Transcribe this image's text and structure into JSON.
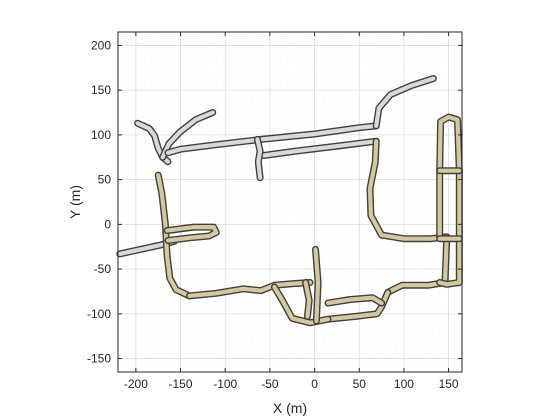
{
  "chart_data": {
    "type": "line",
    "xlabel": "X (m)",
    "ylabel": "Y (m)",
    "xlim": [
      -220,
      165
    ],
    "ylim": [
      -165,
      215
    ],
    "xticks": [
      -200,
      -150,
      -100,
      -50,
      0,
      50,
      100,
      150
    ],
    "yticks": [
      -150,
      -100,
      -50,
      0,
      50,
      100,
      150,
      200
    ],
    "xtick_labels": [
      "-200",
      "-150",
      "-100",
      "-50",
      "0",
      "50",
      "100",
      "150"
    ],
    "ytick_labels": [
      "-150",
      "-100",
      "-50",
      "0",
      "50",
      "100",
      "150",
      "200"
    ],
    "grid": true,
    "minor_grid": true,
    "colors": {
      "road_fill_gray": "#d9d9d9",
      "road_fill_tan": "#d4c99e",
      "road_edge": "#404040",
      "axis": "#262626",
      "major_grid": "#dcdcdc",
      "minor_grid": "#efefef"
    },
    "roads": [
      {
        "id": "upper-west-branch",
        "color": "gray",
        "points": [
          [
            -198,
            113
          ],
          [
            -185,
            107
          ],
          [
            -179,
            99
          ],
          [
            -175,
            85
          ],
          [
            -170,
            75
          ],
          [
            -164,
            70
          ]
        ]
      },
      {
        "id": "upper-northwest-branch",
        "color": "gray",
        "points": [
          [
            -114,
            125
          ],
          [
            -133,
            117
          ],
          [
            -151,
            103
          ],
          [
            -163,
            90
          ],
          [
            -170,
            75
          ]
        ]
      },
      {
        "id": "upper-main-road",
        "color": "gray",
        "points": [
          [
            -164,
            80
          ],
          [
            -150,
            84
          ],
          [
            -110,
            89
          ],
          [
            -60,
            95
          ],
          [
            0,
            101
          ],
          [
            50,
            108
          ],
          [
            69,
            110
          ]
        ]
      },
      {
        "id": "upper-parallel-road",
        "color": "gray",
        "points": [
          [
            -57,
            77
          ],
          [
            -20,
            82
          ],
          [
            30,
            88
          ],
          [
            69,
            93
          ]
        ]
      },
      {
        "id": "connector-stub",
        "color": "gray",
        "points": [
          [
            -64,
            95
          ],
          [
            -61,
            82
          ],
          [
            -63,
            70
          ],
          [
            -61,
            52
          ]
        ]
      },
      {
        "id": "northeast-road",
        "color": "gray",
        "points": [
          [
            69,
            110
          ],
          [
            72,
            130
          ],
          [
            85,
            145
          ],
          [
            108,
            155
          ],
          [
            133,
            163
          ]
        ]
      },
      {
        "id": "west-access-road",
        "color": "gray",
        "points": [
          [
            -218,
            -33
          ],
          [
            -195,
            -28
          ],
          [
            -172,
            -23
          ],
          [
            -157,
            -19
          ]
        ]
      },
      {
        "id": "west-vertical-road",
        "color": "tan",
        "points": [
          [
            -175,
            55
          ],
          [
            -171,
            35
          ],
          [
            -167,
            0
          ],
          [
            -165,
            -35
          ],
          [
            -162,
            -60
          ],
          [
            -155,
            -73
          ],
          [
            -140,
            -80
          ]
        ]
      },
      {
        "id": "south-road",
        "color": "tan",
        "points": [
          [
            -140,
            -80
          ],
          [
            -110,
            -77
          ],
          [
            -80,
            -72
          ],
          [
            -60,
            -74
          ],
          [
            -45,
            -68
          ],
          [
            -20,
            -66
          ],
          [
            -5,
            -65
          ]
        ]
      },
      {
        "id": "loop-road",
        "color": "tan",
        "points": [
          [
            -164,
            -18
          ],
          [
            -140,
            -15
          ],
          [
            -118,
            -13
          ],
          [
            -110,
            -9
          ],
          [
            -113,
            -3
          ],
          [
            -135,
            -3
          ],
          [
            -165,
            -7
          ]
        ]
      },
      {
        "id": "east-connector",
        "color": "tan",
        "points": [
          [
            69,
            93
          ],
          [
            68,
            70
          ],
          [
            62,
            40
          ],
          [
            63,
            10
          ],
          [
            75,
            -12
          ],
          [
            100,
            -16
          ],
          [
            130,
            -16
          ],
          [
            148,
            -14
          ]
        ]
      },
      {
        "id": "far-east-road",
        "color": "tan",
        "points": [
          [
            148,
            -14
          ],
          [
            147,
            -40
          ],
          [
            146,
            -65
          ],
          [
            128,
            -68
          ],
          [
            98,
            -68
          ],
          [
            82,
            -76
          ]
        ]
      },
      {
        "id": "southeast-road",
        "color": "tan",
        "points": [
          [
            82,
            -76
          ],
          [
            75,
            -92
          ],
          [
            70,
            -100
          ],
          [
            45,
            -103
          ],
          [
            15,
            -106
          ]
        ]
      },
      {
        "id": "lower-loop-road",
        "color": "tan",
        "points": [
          [
            -45,
            -70
          ],
          [
            -36,
            -85
          ],
          [
            -25,
            -105
          ],
          [
            -5,
            -110
          ],
          [
            15,
            -106
          ]
        ]
      },
      {
        "id": "lower-right-road",
        "color": "tan",
        "points": [
          [
            15,
            -88
          ],
          [
            40,
            -84
          ],
          [
            65,
            -82
          ],
          [
            75,
            -88
          ]
        ]
      },
      {
        "id": "center-spur",
        "color": "tan",
        "points": [
          [
            1,
            -28
          ],
          [
            4,
            -65
          ],
          [
            2,
            -108
          ]
        ]
      },
      {
        "id": "lower-middle-spur",
        "color": "tan",
        "points": [
          [
            -10,
            -65
          ],
          [
            -6,
            -85
          ],
          [
            -8,
            -103
          ]
        ]
      },
      {
        "id": "east-block-outer",
        "color": "tan",
        "points": [
          [
            140,
            -15
          ],
          [
            140,
            60
          ],
          [
            141,
            115
          ],
          [
            150,
            120
          ],
          [
            160,
            117
          ],
          [
            162,
            60
          ],
          [
            162,
            -65
          ],
          [
            148,
            -67
          ],
          [
            140,
            -65
          ]
        ]
      },
      {
        "id": "east-block-divider-1",
        "color": "tan",
        "points": [
          [
            140,
            60
          ],
          [
            162,
            60
          ]
        ]
      },
      {
        "id": "east-block-divider-2",
        "color": "tan",
        "points": [
          [
            140,
            -16
          ],
          [
            162,
            -16
          ]
        ]
      }
    ]
  }
}
